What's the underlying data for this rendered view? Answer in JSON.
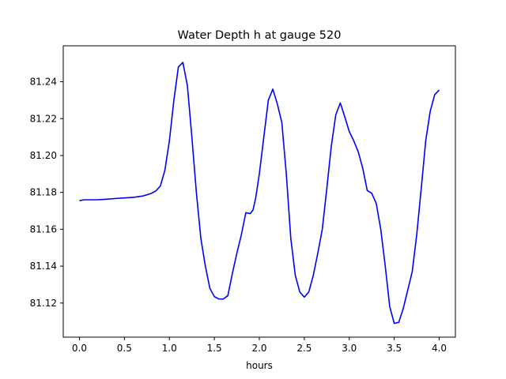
{
  "chart_data": {
    "type": "line",
    "title": "Water Depth h at gauge 520",
    "xlabel": "hours",
    "ylabel": "",
    "xlim": [
      -0.18,
      4.18
    ],
    "ylim": [
      81.1015,
      81.2595
    ],
    "xticks": [
      "0.0",
      "0.5",
      "1.0",
      "1.5",
      "2.0",
      "2.5",
      "3.0",
      "3.5",
      "4.0"
    ],
    "yticks": [
      "81.12",
      "81.14",
      "81.16",
      "81.18",
      "81.20",
      "81.22",
      "81.24"
    ],
    "grid": false,
    "line_color": "#0000ff",
    "series": [
      {
        "x": [
          0.0,
          0.05,
          0.1,
          0.2,
          0.3,
          0.4,
          0.5,
          0.6,
          0.7,
          0.75,
          0.8,
          0.85,
          0.9,
          0.95,
          1.0,
          1.05,
          1.1,
          1.15,
          1.2,
          1.25,
          1.3,
          1.35,
          1.4,
          1.45,
          1.5,
          1.55,
          1.6,
          1.65,
          1.7,
          1.75,
          1.8,
          1.85,
          1.9,
          1.93,
          1.96,
          2.0,
          2.05,
          2.1,
          2.15,
          2.2,
          2.25,
          2.3,
          2.35,
          2.4,
          2.45,
          2.5,
          2.55,
          2.6,
          2.65,
          2.7,
          2.75,
          2.8,
          2.85,
          2.9,
          2.95,
          3.0,
          3.05,
          3.1,
          3.15,
          3.2,
          3.25,
          3.3,
          3.35,
          3.4,
          3.45,
          3.5,
          3.55,
          3.6,
          3.65,
          3.7,
          3.75,
          3.8,
          3.85,
          3.9,
          3.95,
          4.0
        ],
        "values": [
          81.1755,
          81.176,
          81.176,
          81.176,
          81.1763,
          81.1767,
          81.177,
          81.1773,
          81.178,
          81.1787,
          81.1795,
          81.1808,
          81.1835,
          81.192,
          81.208,
          81.23,
          81.248,
          81.2505,
          81.238,
          81.21,
          81.18,
          81.155,
          81.14,
          81.128,
          81.1235,
          81.1222,
          81.1222,
          81.124,
          81.136,
          81.147,
          81.157,
          81.169,
          81.1685,
          81.1705,
          81.177,
          81.19,
          81.21,
          81.23,
          81.236,
          81.228,
          81.218,
          81.19,
          81.155,
          81.135,
          81.126,
          81.1232,
          81.126,
          81.135,
          81.147,
          81.16,
          81.182,
          81.205,
          81.222,
          81.2285,
          81.221,
          81.213,
          81.208,
          81.202,
          81.193,
          81.181,
          81.1795,
          81.174,
          81.16,
          81.14,
          81.118,
          81.109,
          81.1095,
          81.117,
          81.127,
          81.137,
          81.157,
          81.182,
          81.208,
          81.224,
          81.233,
          81.2355
        ]
      }
    ]
  }
}
